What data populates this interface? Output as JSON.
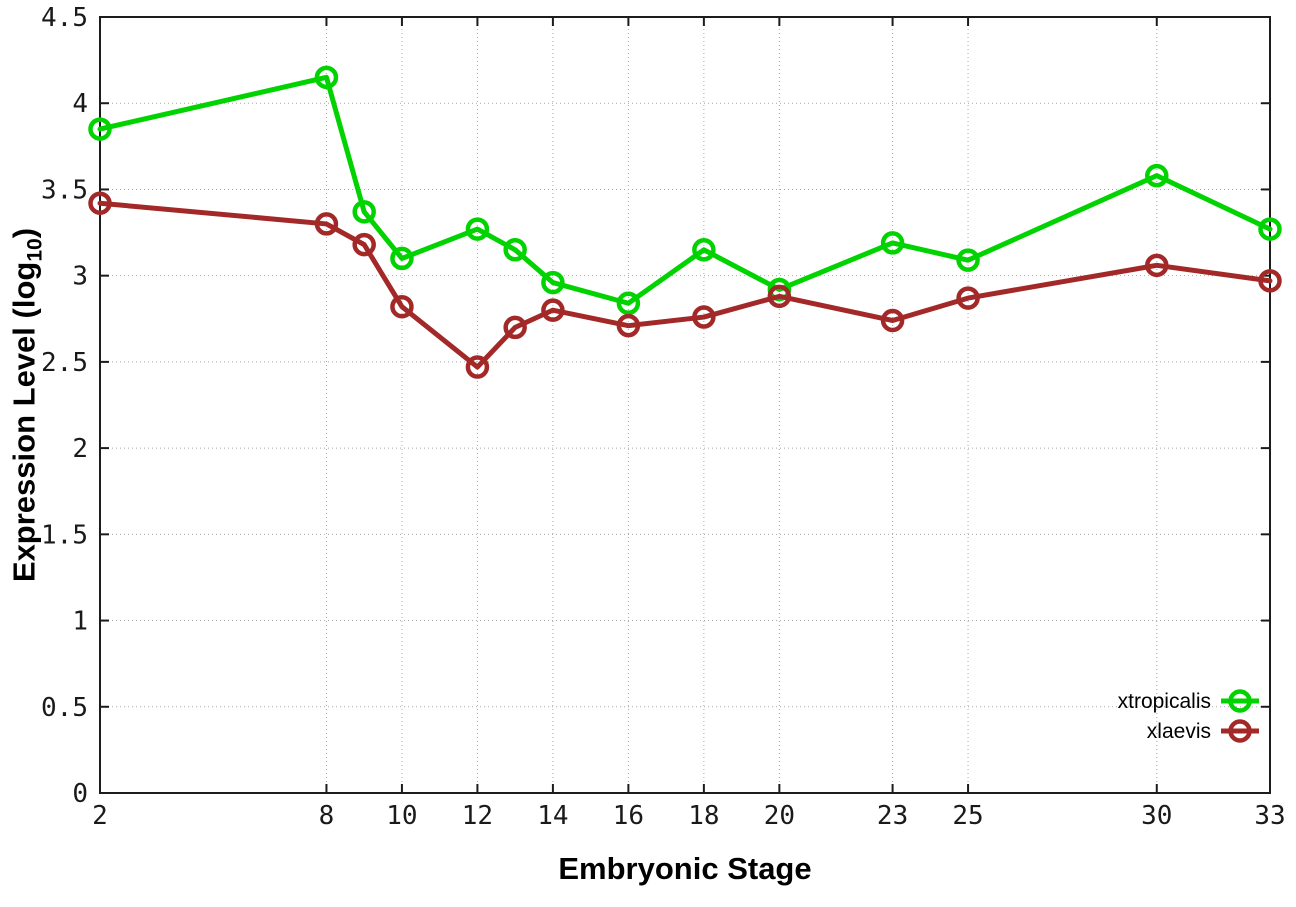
{
  "chart_data": {
    "type": "line",
    "title": "",
    "xlabel": "Embryonic Stage",
    "ylabel": "Expression Level (log10)",
    "ylabel_parts": {
      "main": "Expression Level (log",
      "sub": "10",
      "close": ")"
    },
    "x": [
      2,
      8,
      9,
      10,
      12,
      13,
      14,
      16,
      18,
      20,
      23,
      25,
      30,
      33
    ],
    "series": [
      {
        "name": "xtropicalis",
        "color": "#00d300",
        "values": [
          3.85,
          4.15,
          3.37,
          3.1,
          3.27,
          3.15,
          2.96,
          2.84,
          3.15,
          2.92,
          3.19,
          3.09,
          3.58,
          3.27
        ]
      },
      {
        "name": "xlaevis",
        "color": "#a32929",
        "values": [
          3.42,
          3.3,
          3.18,
          2.82,
          2.47,
          2.7,
          2.8,
          2.71,
          2.76,
          2.88,
          2.74,
          2.87,
          3.06,
          2.97
        ]
      }
    ],
    "x_ticks": [
      2,
      8,
      10,
      12,
      14,
      16,
      18,
      20,
      23,
      25,
      30,
      33
    ],
    "y_ticks": [
      0,
      0.5,
      1,
      1.5,
      2,
      2.5,
      3,
      3.5,
      4,
      4.5
    ],
    "xlim": [
      2,
      33
    ],
    "ylim": [
      0,
      4.5
    ],
    "grid": true,
    "legend_position": "bottom-right",
    "marker": "open-circle"
  }
}
